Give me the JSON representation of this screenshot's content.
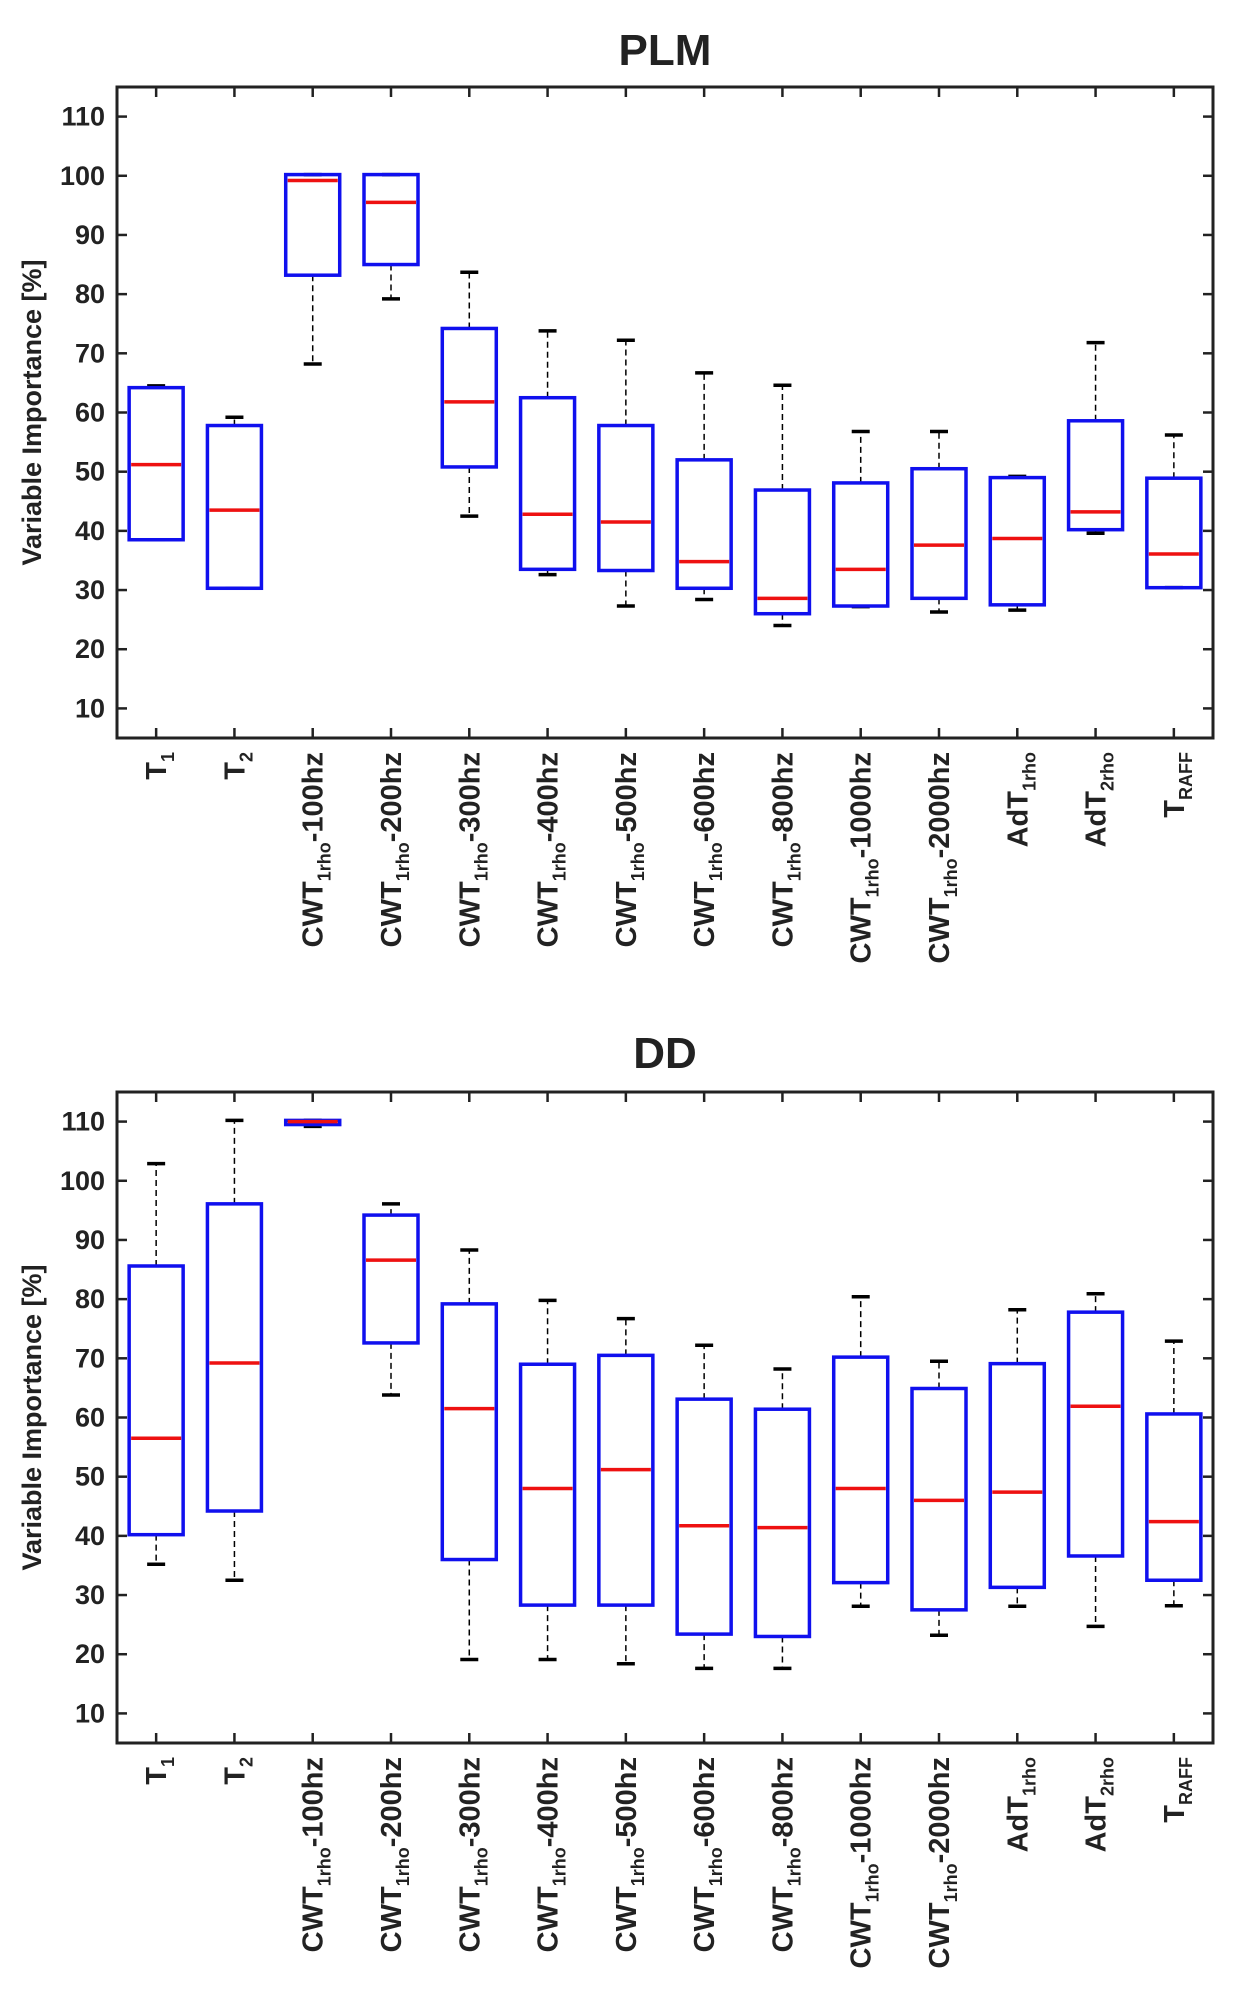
{
  "chart_data": [
    {
      "type": "boxplot",
      "title": "PLM",
      "ylabel": "Variable Importance [%]",
      "ylim": [
        5,
        115
      ],
      "yticks": [
        10,
        20,
        30,
        40,
        50,
        60,
        70,
        80,
        90,
        100,
        110
      ],
      "categories": [
        {
          "main": "T",
          "sub": "1",
          "suffix": ""
        },
        {
          "main": "T",
          "sub": "2",
          "suffix": ""
        },
        {
          "main": "CWT",
          "sub": "1rho",
          "suffix": "-100hz"
        },
        {
          "main": "CWT",
          "sub": "1rho",
          "suffix": "-200hz"
        },
        {
          "main": "CWT",
          "sub": "1rho",
          "suffix": "-300hz"
        },
        {
          "main": "CWT",
          "sub": "1rho",
          "suffix": "-400hz"
        },
        {
          "main": "CWT",
          "sub": "1rho",
          "suffix": "-500hz"
        },
        {
          "main": "CWT",
          "sub": "1rho",
          "suffix": "-600hz"
        },
        {
          "main": "CWT",
          "sub": "1rho",
          "suffix": "-800hz"
        },
        {
          "main": "CWT",
          "sub": "1rho",
          "suffix": "-1000hz"
        },
        {
          "main": "CWT",
          "sub": "1rho",
          "suffix": "-2000hz"
        },
        {
          "main": "AdT",
          "sub": "1rho",
          "suffix": ""
        },
        {
          "main": "AdT",
          "sub": "2rho",
          "suffix": ""
        },
        {
          "main": "T",
          "sub": "RAFF",
          "suffix": ""
        }
      ],
      "boxes": [
        {
          "whisker_low": 38.5,
          "q1": 38.5,
          "median": 51.2,
          "q3": 64.2,
          "whisker_high": 64.5
        },
        {
          "whisker_low": 30.3,
          "q1": 30.3,
          "median": 43.5,
          "q3": 57.8,
          "whisker_high": 59.2
        },
        {
          "whisker_low": 68.2,
          "q1": 83.2,
          "median": 99.2,
          "q3": 100.2,
          "whisker_high": 100.2
        },
        {
          "whisker_low": 79.2,
          "q1": 85.0,
          "median": 95.5,
          "q3": 100.2,
          "whisker_high": 100.2
        },
        {
          "whisker_low": 42.5,
          "q1": 50.8,
          "median": 61.8,
          "q3": 74.2,
          "whisker_high": 83.7
        },
        {
          "whisker_low": 32.6,
          "q1": 33.5,
          "median": 42.8,
          "q3": 62.5,
          "whisker_high": 73.8
        },
        {
          "whisker_low": 27.3,
          "q1": 33.3,
          "median": 41.5,
          "q3": 57.8,
          "whisker_high": 72.2
        },
        {
          "whisker_low": 28.4,
          "q1": 30.3,
          "median": 34.8,
          "q3": 52.0,
          "whisker_high": 66.7
        },
        {
          "whisker_low": 24.0,
          "q1": 26.0,
          "median": 28.6,
          "q3": 46.9,
          "whisker_high": 64.6
        },
        {
          "whisker_low": 27.2,
          "q1": 27.3,
          "median": 33.5,
          "q3": 48.1,
          "whisker_high": 56.8
        },
        {
          "whisker_low": 26.3,
          "q1": 28.6,
          "median": 37.6,
          "q3": 50.5,
          "whisker_high": 56.8
        },
        {
          "whisker_low": 26.6,
          "q1": 27.5,
          "median": 38.7,
          "q3": 49.0,
          "whisker_high": 49.2
        },
        {
          "whisker_low": 39.6,
          "q1": 40.2,
          "median": 43.2,
          "q3": 58.6,
          "whisker_high": 71.8
        },
        {
          "whisker_low": 30.4,
          "q1": 30.4,
          "median": 36.1,
          "q3": 48.9,
          "whisker_high": 56.2
        }
      ],
      "colors": {
        "box": "#1010ee",
        "median": "#ee1111",
        "whisker": "#000000",
        "axis": "#222222"
      }
    },
    {
      "type": "boxplot",
      "title": "DD",
      "ylabel": "Variable Importance [%]",
      "ylim": [
        5,
        115
      ],
      "yticks": [
        10,
        20,
        30,
        40,
        50,
        60,
        70,
        80,
        90,
        100,
        110
      ],
      "categories": [
        {
          "main": "T",
          "sub": "1",
          "suffix": ""
        },
        {
          "main": "T",
          "sub": "2",
          "suffix": ""
        },
        {
          "main": "CWT",
          "sub": "1rho",
          "suffix": "-100hz"
        },
        {
          "main": "CWT",
          "sub": "1rho",
          "suffix": "-200hz"
        },
        {
          "main": "CWT",
          "sub": "1rho",
          "suffix": "-300hz"
        },
        {
          "main": "CWT",
          "sub": "1rho",
          "suffix": "-400hz"
        },
        {
          "main": "CWT",
          "sub": "1rho",
          "suffix": "-500hz"
        },
        {
          "main": "CWT",
          "sub": "1rho",
          "suffix": "-600hz"
        },
        {
          "main": "CWT",
          "sub": "1rho",
          "suffix": "-800hz"
        },
        {
          "main": "CWT",
          "sub": "1rho",
          "suffix": "-1000hz"
        },
        {
          "main": "CWT",
          "sub": "1rho",
          "suffix": "-2000hz"
        },
        {
          "main": "AdT",
          "sub": "1rho",
          "suffix": ""
        },
        {
          "main": "AdT",
          "sub": "2rho",
          "suffix": ""
        },
        {
          "main": "T",
          "sub": "RAFF",
          "suffix": ""
        }
      ],
      "boxes": [
        {
          "whisker_low": 35.2,
          "q1": 40.2,
          "median": 56.5,
          "q3": 85.6,
          "whisker_high": 102.9
        },
        {
          "whisker_low": 32.5,
          "q1": 44.2,
          "median": 69.2,
          "q3": 96.1,
          "whisker_high": 110.2
        },
        {
          "whisker_low": 109.2,
          "q1": 109.5,
          "median": 110.0,
          "q3": 110.2,
          "whisker_high": 110.2
        },
        {
          "whisker_low": 63.8,
          "q1": 72.6,
          "median": 86.6,
          "q3": 94.2,
          "whisker_high": 96.1
        },
        {
          "whisker_low": 19.1,
          "q1": 36.0,
          "median": 61.5,
          "q3": 79.2,
          "whisker_high": 88.3
        },
        {
          "whisker_low": 19.1,
          "q1": 28.3,
          "median": 48.0,
          "q3": 69.0,
          "whisker_high": 79.8
        },
        {
          "whisker_low": 18.4,
          "q1": 28.3,
          "median": 51.2,
          "q3": 70.5,
          "whisker_high": 76.7
        },
        {
          "whisker_low": 17.6,
          "q1": 23.4,
          "median": 41.7,
          "q3": 63.1,
          "whisker_high": 72.2
        },
        {
          "whisker_low": 17.6,
          "q1": 23.0,
          "median": 41.4,
          "q3": 61.4,
          "whisker_high": 68.2
        },
        {
          "whisker_low": 28.1,
          "q1": 32.1,
          "median": 48.0,
          "q3": 70.2,
          "whisker_high": 80.4
        },
        {
          "whisker_low": 23.2,
          "q1": 27.5,
          "median": 46.0,
          "q3": 64.9,
          "whisker_high": 69.5
        },
        {
          "whisker_low": 28.1,
          "q1": 31.3,
          "median": 47.4,
          "q3": 69.1,
          "whisker_high": 78.2
        },
        {
          "whisker_low": 24.7,
          "q1": 36.6,
          "median": 61.9,
          "q3": 77.8,
          "whisker_high": 80.9
        },
        {
          "whisker_low": 28.2,
          "q1": 32.5,
          "median": 42.4,
          "q3": 60.6,
          "whisker_high": 72.9
        }
      ],
      "colors": {
        "box": "#1010ee",
        "median": "#ee1111",
        "whisker": "#000000",
        "axis": "#222222"
      }
    }
  ]
}
